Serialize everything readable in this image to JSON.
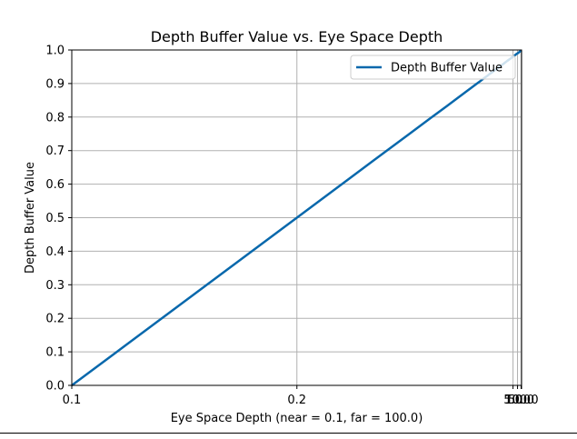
{
  "chart_data": {
    "type": "line",
    "title": "Depth Buffer Value vs. Eye Space Depth",
    "xlabel": "Eye Space Depth (near = 0.1, far = 100.0)",
    "ylabel": "Depth Buffer Value",
    "x_scale": "reciprocal",
    "xlim": [
      0.1,
      100.0
    ],
    "ylim": [
      0.0,
      1.0
    ],
    "x_ticks": [
      0.1,
      0.2,
      5.0,
      10.0,
      50.0,
      100.0
    ],
    "x_tick_labels": [
      "0.1",
      "0.2",
      "5.0",
      "10.0",
      "50.0",
      "100.0"
    ],
    "y_ticks": [
      0.0,
      0.1,
      0.2,
      0.3,
      0.4,
      0.5,
      0.6,
      0.7,
      0.8,
      0.9,
      1.0
    ],
    "y_tick_labels": [
      "0.0",
      "0.1",
      "0.2",
      "0.3",
      "0.4",
      "0.5",
      "0.6",
      "0.7",
      "0.8",
      "0.9",
      "1.0"
    ],
    "grid": true,
    "legend_position": "top-right",
    "series": [
      {
        "name": "Depth Buffer Value",
        "color": "#0868ac",
        "x": [
          0.1,
          0.2,
          0.3,
          0.4,
          0.5,
          0.6,
          0.7,
          0.8,
          0.9,
          1.0,
          1.1,
          1.2,
          1.3,
          1.4,
          1.5,
          1.6,
          1.7,
          1.8,
          1.9,
          2.0,
          2.5,
          3.0,
          4.0,
          5.0,
          6.0,
          7.0,
          8.0,
          10.0,
          15.0,
          20.0,
          30.0,
          50.0,
          100.0
        ],
        "y": [
          0.0,
          0.5,
          0.667,
          0.75,
          0.8,
          0.833,
          0.857,
          0.875,
          0.889,
          0.9,
          0.909,
          0.917,
          0.923,
          0.929,
          0.933,
          0.938,
          0.941,
          0.944,
          0.947,
          0.95,
          0.96,
          0.967,
          0.975,
          0.98,
          0.983,
          0.986,
          0.988,
          0.99,
          0.993,
          0.995,
          0.997,
          0.998,
          0.999
        ]
      }
    ]
  }
}
